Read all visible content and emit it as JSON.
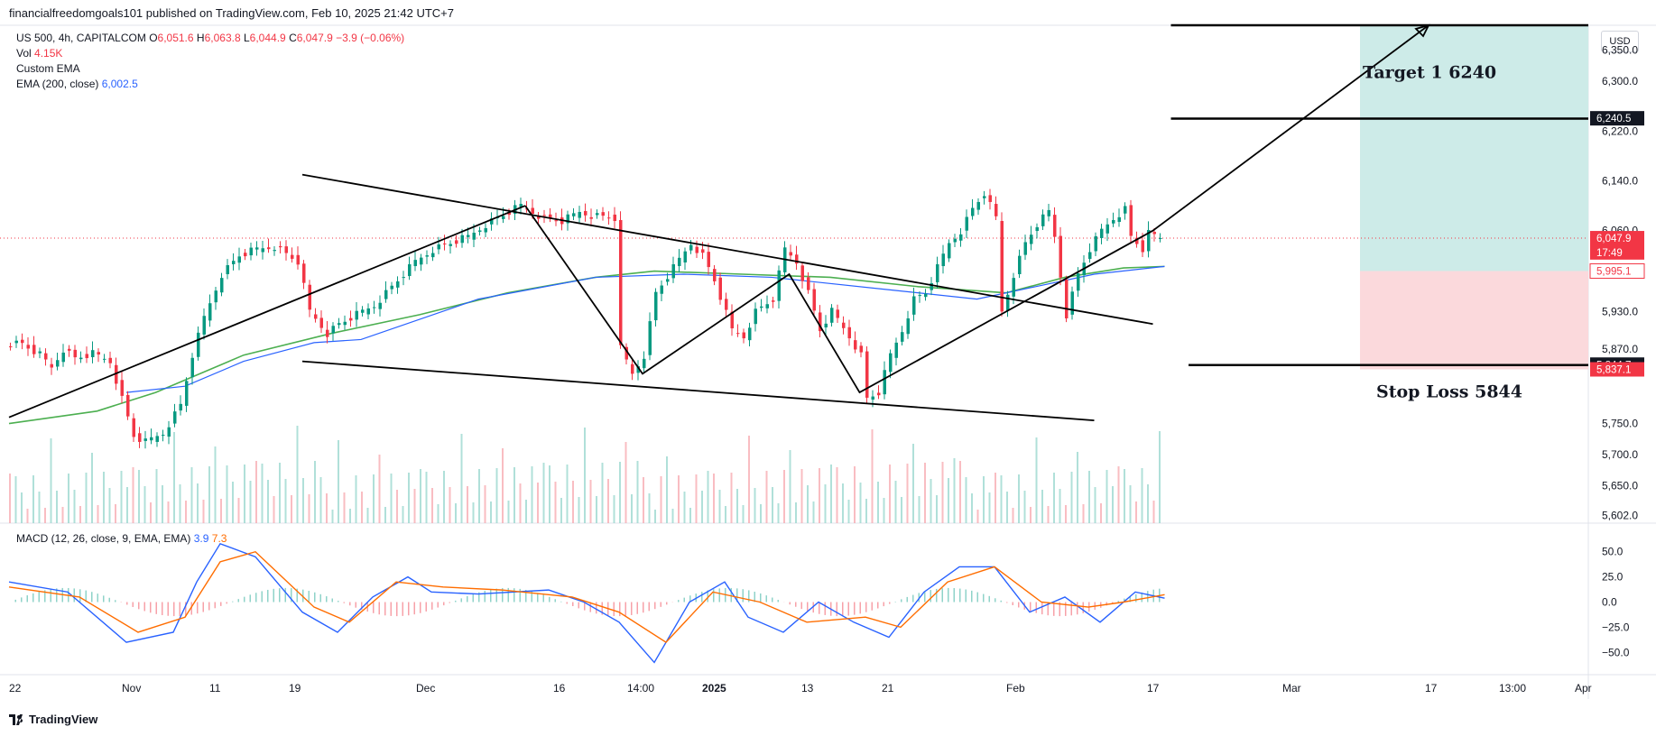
{
  "header": {
    "published": "financialfreedomgoals101 published on TradingView.com, Feb 10, 2025 21:42 UTC+7"
  },
  "legend": {
    "symbol": "US 500, 4h, CAPITALCOM",
    "o_label": "O",
    "o": "6,051.6",
    "h_label": "H",
    "h": "6,063.8",
    "l_label": "L",
    "l": "6,044.9",
    "c_label": "C",
    "c": "6,047.9",
    "change": "−3.9 (−0.06%)",
    "vol_label": "Vol",
    "vol": "4.15K",
    "custom_ema": "Custom EMA",
    "ema_label": "EMA (200, close)",
    "ema_value": "6,002.5"
  },
  "macd_legend": {
    "label": "MACD (12, 26, close, 9, EMA, EMA)",
    "value1": "3.9",
    "value2": "7.3"
  },
  "currency": "USD",
  "footer": {
    "brand": "TradingView"
  },
  "colors": {
    "up": "#089981",
    "down": "#f23645",
    "ema200": "#4caf50",
    "ema_blue": "#2962ff",
    "macd": "#2962ff",
    "signal": "#ff6d00",
    "target_zone": "#cdebe8",
    "stop_zone": "#fbd9dc"
  },
  "chart_data": [
    {
      "type": "line",
      "title": "",
      "y_ticks": [
        "6,350.0",
        "6,300.0",
        "6,220.0",
        "6,140.0",
        "6,060.0",
        "5,995.1",
        "5,930.0",
        "5,870.0",
        "5,750.0",
        "5,700.0",
        "5,650.0",
        "5,602.0"
      ],
      "x_ticks": [
        "22",
        "Nov",
        "11",
        "19",
        "Dec",
        "16",
        "14:00",
        "2025",
        "13",
        "21",
        "Feb",
        "17",
        "Mar",
        "17",
        "13:00",
        "Apr"
      ],
      "ylim": [
        5590,
        6390
      ],
      "price_path": [
        [
          0,
          5880
        ],
        [
          3,
          5878
        ],
        [
          6,
          5860
        ],
        [
          8,
          5840
        ],
        [
          10,
          5870
        ],
        [
          12,
          5855
        ],
        [
          15,
          5862
        ],
        [
          18,
          5850
        ],
        [
          22,
          5730
        ],
        [
          24,
          5720
        ],
        [
          27,
          5735
        ],
        [
          30,
          5780
        ],
        [
          32,
          5860
        ],
        [
          34,
          5920
        ],
        [
          37,
          5990
        ],
        [
          40,
          6020
        ],
        [
          43,
          6030
        ],
        [
          46,
          6035
        ],
        [
          50,
          6010
        ],
        [
          52,
          5930
        ],
        [
          55,
          5895
        ],
        [
          57,
          5910
        ],
        [
          60,
          5925
        ],
        [
          63,
          5940
        ],
        [
          66,
          5970
        ],
        [
          68,
          5990
        ],
        [
          70,
          6010
        ],
        [
          73,
          6030
        ],
        [
          76,
          6040
        ],
        [
          79,
          6050
        ],
        [
          82,
          6070
        ],
        [
          85,
          6085
        ],
        [
          88,
          6100
        ],
        [
          92,
          6080
        ],
        [
          95,
          6075
        ],
        [
          98,
          6090
        ],
        [
          100,
          6085
        ],
        [
          104,
          6080
        ],
        [
          105,
          5870
        ],
        [
          107,
          5830
        ],
        [
          109,
          5860
        ],
        [
          111,
          5960
        ],
        [
          114,
          6000
        ],
        [
          117,
          6040
        ],
        [
          119,
          6020
        ],
        [
          121,
          5980
        ],
        [
          124,
          5900
        ],
        [
          126,
          5890
        ],
        [
          128,
          5930
        ],
        [
          131,
          5950
        ],
        [
          133,
          6030
        ],
        [
          135,
          6010
        ],
        [
          137,
          5960
        ],
        [
          139,
          5900
        ],
        [
          141,
          5930
        ],
        [
          144,
          5890
        ],
        [
          146,
          5860
        ],
        [
          147,
          5790
        ],
        [
          149,
          5800
        ],
        [
          151,
          5860
        ],
        [
          153,
          5900
        ],
        [
          155,
          5950
        ],
        [
          157,
          5960
        ],
        [
          159,
          6000
        ],
        [
          161,
          6040
        ],
        [
          163,
          6060
        ],
        [
          165,
          6095
        ],
        [
          167,
          6120
        ],
        [
          169,
          6080
        ],
        [
          170,
          5930
        ],
        [
          172,
          5990
        ],
        [
          174,
          6040
        ],
        [
          176,
          6070
        ],
        [
          178,
          6090
        ],
        [
          179,
          6050
        ],
        [
          181,
          5925
        ],
        [
          183,
          5990
        ],
        [
          185,
          6030
        ],
        [
          187,
          6060
        ],
        [
          189,
          6080
        ],
        [
          191,
          6095
        ],
        [
          192,
          6050
        ],
        [
          194,
          6030
        ],
        [
          195,
          6055
        ],
        [
          197,
          6048
        ]
      ],
      "ema200_path": [
        [
          0,
          5750
        ],
        [
          15,
          5770
        ],
        [
          25,
          5800
        ],
        [
          40,
          5860
        ],
        [
          55,
          5895
        ],
        [
          70,
          5925
        ],
        [
          85,
          5960
        ],
        [
          100,
          5985
        ],
        [
          110,
          5995
        ],
        [
          125,
          5990
        ],
        [
          140,
          5985
        ],
        [
          155,
          5970
        ],
        [
          170,
          5960
        ],
        [
          180,
          5985
        ],
        [
          190,
          6000
        ],
        [
          197,
          6002.5
        ]
      ],
      "ema_blue_path": [
        [
          20,
          5800
        ],
        [
          30,
          5810
        ],
        [
          40,
          5850
        ],
        [
          52,
          5880
        ],
        [
          60,
          5885
        ],
        [
          80,
          5950
        ],
        [
          100,
          5985
        ],
        [
          115,
          5990
        ],
        [
          130,
          5985
        ],
        [
          150,
          5965
        ],
        [
          165,
          5950
        ],
        [
          175,
          5970
        ],
        [
          185,
          5990
        ],
        [
          197,
          6002.5
        ]
      ],
      "current_price": 6047.9,
      "countdown": "17:49",
      "tags": [
        {
          "label": "6,240.5",
          "value": 6240.5,
          "type": "dark"
        },
        {
          "label": "6,047.9",
          "value": 6047.9,
          "type": "red"
        },
        {
          "label": "17:49",
          "value": 6025,
          "type": "red"
        },
        {
          "label": "5,995.1",
          "value": 5995.1,
          "type": "redoutline"
        },
        {
          "label": "5,844.7",
          "value": 5844.7,
          "type": "dark"
        },
        {
          "label": "5,837.1",
          "value": 5837.1,
          "type": "red"
        }
      ],
      "levels": [
        {
          "value": 6390,
          "from": 195,
          "to": 285
        },
        {
          "value": 6240,
          "from": 195,
          "to": 285
        },
        {
          "value": 5844,
          "from": 198,
          "to": 285
        }
      ],
      "target_zone": {
        "from": 5995.1,
        "to": 6390
      },
      "stop_zone": {
        "from": 5837.1,
        "to": 5995.1
      },
      "target_label": "Target 1  6240",
      "stop_label": "Stop Loss 5844",
      "annotations": [
        {
          "name": "trendline-upper",
          "points": [
            [
              50,
              6150
            ],
            [
              195,
              5910
            ]
          ]
        },
        {
          "name": "trendline-lower",
          "points": [
            [
              50,
              5850
            ],
            [
              185,
              5755
            ]
          ]
        },
        {
          "name": "rising-channel-left",
          "points": [
            [
              0,
              5760
            ],
            [
              88,
              6100
            ]
          ]
        },
        {
          "name": "zigzag",
          "points": [
            [
              88,
              6100
            ],
            [
              108,
              5830
            ],
            [
              133,
              5990
            ],
            [
              145,
              5800
            ],
            [
              195,
              6060
            ],
            [
              242,
              6390
            ]
          ]
        }
      ]
    },
    {
      "type": "bar",
      "title": "Volume"
    },
    {
      "type": "line",
      "title": "",
      "y_ticks": [
        "50.0",
        "25.0",
        "0.0",
        "−25.0",
        "−50.0"
      ],
      "ylim": [
        -65,
        65
      ],
      "macd_path": [
        [
          0,
          20
        ],
        [
          10,
          10
        ],
        [
          20,
          -40
        ],
        [
          28,
          -30
        ],
        [
          32,
          20
        ],
        [
          36,
          58
        ],
        [
          42,
          45
        ],
        [
          50,
          -10
        ],
        [
          56,
          -30
        ],
        [
          62,
          5
        ],
        [
          68,
          25
        ],
        [
          72,
          10
        ],
        [
          80,
          8
        ],
        [
          92,
          12
        ],
        [
          98,
          0
        ],
        [
          104,
          -20
        ],
        [
          110,
          -60
        ],
        [
          116,
          0
        ],
        [
          122,
          20
        ],
        [
          126,
          -15
        ],
        [
          132,
          -30
        ],
        [
          138,
          0
        ],
        [
          144,
          -20
        ],
        [
          150,
          -35
        ],
        [
          156,
          10
        ],
        [
          162,
          35
        ],
        [
          168,
          35
        ],
        [
          174,
          -10
        ],
        [
          180,
          5
        ],
        [
          186,
          -20
        ],
        [
          192,
          10
        ],
        [
          197,
          3.9
        ]
      ],
      "signal_path": [
        [
          0,
          15
        ],
        [
          12,
          5
        ],
        [
          22,
          -30
        ],
        [
          30,
          -15
        ],
        [
          36,
          40
        ],
        [
          42,
          50
        ],
        [
          52,
          -5
        ],
        [
          58,
          -20
        ],
        [
          66,
          20
        ],
        [
          74,
          15
        ],
        [
          84,
          12
        ],
        [
          96,
          5
        ],
        [
          104,
          -10
        ],
        [
          112,
          -40
        ],
        [
          120,
          10
        ],
        [
          128,
          0
        ],
        [
          136,
          -20
        ],
        [
          146,
          -15
        ],
        [
          152,
          -25
        ],
        [
          160,
          20
        ],
        [
          168,
          35
        ],
        [
          176,
          0
        ],
        [
          184,
          -5
        ],
        [
          190,
          0
        ],
        [
          197,
          7.3
        ]
      ]
    }
  ]
}
